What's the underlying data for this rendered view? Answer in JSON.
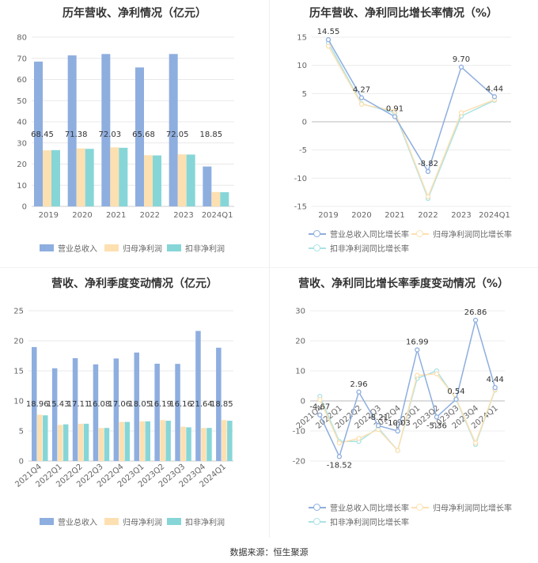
{
  "source": "数据来源：恒生聚源",
  "colors": {
    "revenue": "#8eaedf",
    "net_profit": "#fde0b1",
    "deducted": "#86d6d8"
  },
  "chart_data": [
    {
      "type": "bar",
      "title": "历年营收、净利情况（亿元）",
      "categories": [
        "2019",
        "2020",
        "2021",
        "2022",
        "2023",
        "2024Q1"
      ],
      "ylim": [
        0,
        80
      ],
      "yticks": [
        0,
        10,
        20,
        30,
        40,
        50,
        60,
        70,
        80
      ],
      "grid": true,
      "legend_position": "bottom",
      "series": [
        {
          "name": "营业总收入",
          "values": [
            68.45,
            71.38,
            72.03,
            65.68,
            72.05,
            18.85
          ],
          "labels": [
            "68.45",
            "71.38",
            "72.03",
            "65.68",
            "72.05",
            "18.85"
          ]
        },
        {
          "name": "归母净利润",
          "values": [
            26.5,
            27.4,
            27.9,
            24.2,
            24.6,
            6.8
          ]
        },
        {
          "name": "扣非净利润",
          "values": [
            26.6,
            27.2,
            27.7,
            24.1,
            24.5,
            6.7
          ]
        }
      ]
    },
    {
      "type": "line",
      "title": "历年营收、净利同比增长率情况（%）",
      "categories": [
        "2019",
        "2020",
        "2021",
        "2022",
        "2023",
        "2024Q1"
      ],
      "ylim": [
        -15,
        15
      ],
      "yticks": [
        -15,
        -10,
        -5,
        0,
        5,
        10,
        15
      ],
      "grid": true,
      "legend_position": "bottom",
      "series": [
        {
          "name": "营业总收入同比增长率",
          "values": [
            14.55,
            4.27,
            0.91,
            -8.82,
            9.7,
            4.44
          ],
          "labels": [
            "14.55",
            "4.27",
            "0.91",
            "-8.82",
            "9.70",
            "4.44"
          ]
        },
        {
          "name": "归母净利润同比增长率",
          "values": [
            13.4,
            3.1,
            1.9,
            -13.3,
            1.6,
            3.9
          ]
        },
        {
          "name": "扣非净利润同比增长率",
          "values": [
            14.0,
            3.2,
            1.6,
            -13.6,
            1.0,
            3.8
          ]
        }
      ]
    },
    {
      "type": "bar",
      "title": "营收、净利季度变动情况（亿元）",
      "categories": [
        "2021Q4",
        "2022Q1",
        "2022Q2",
        "2022Q3",
        "2022Q4",
        "2023Q1",
        "2023Q2",
        "2023Q3",
        "2023Q4",
        "2024Q1"
      ],
      "ylim": [
        0,
        25
      ],
      "yticks": [
        0,
        5,
        10,
        15,
        20,
        25
      ],
      "grid": true,
      "legend_position": "bottom",
      "series": [
        {
          "name": "营业总收入",
          "values": [
            18.96,
            15.43,
            17.11,
            16.08,
            17.06,
            18.05,
            16.19,
            16.16,
            21.64,
            18.85
          ],
          "labels": [
            "18.96",
            "15.43",
            "17.11",
            "16.08",
            "17.06",
            "18.05",
            "16.19",
            "16.16",
            "21.64",
            "18.85"
          ]
        },
        {
          "name": "归母净利润",
          "values": [
            7.7,
            6.0,
            6.2,
            5.5,
            6.5,
            6.6,
            6.8,
            5.7,
            5.5,
            6.8
          ]
        },
        {
          "name": "扣非净利润",
          "values": [
            7.6,
            6.1,
            6.2,
            5.5,
            6.5,
            6.6,
            6.7,
            5.6,
            5.5,
            6.7
          ]
        }
      ]
    },
    {
      "type": "line",
      "title": "营收、净利同比增长率季度变动情况（%）",
      "categories": [
        "2021Q4",
        "2022Q1",
        "2022Q2",
        "2022Q3",
        "2022Q4",
        "2023Q1",
        "2023Q2",
        "2023Q3",
        "2023Q4",
        "2024Q1"
      ],
      "ylim": [
        -20,
        30
      ],
      "yticks": [
        -20,
        -10,
        0,
        10,
        20,
        30
      ],
      "grid": true,
      "legend_position": "bottom",
      "series": [
        {
          "name": "营业总收入同比增长率",
          "values": [
            -4.67,
            -18.52,
            2.96,
            -8.21,
            -10.03,
            16.99,
            -5.36,
            0.54,
            26.86,
            4.44
          ],
          "labels": [
            "-4.67",
            "-18.52",
            "2.96",
            "-8.21",
            "-10.03",
            "16.99",
            "-5.36",
            "0.54",
            "26.86",
            "4.44"
          ]
        },
        {
          "name": "归母净利润同比增长率",
          "values": [
            0.5,
            -14.0,
            -12.5,
            -9.5,
            -16.5,
            8.5,
            9.0,
            0.8,
            -14.0,
            3.8
          ]
        },
        {
          "name": "扣非净利润同比增长率",
          "values": [
            1.5,
            -13.5,
            -13.5,
            -9.0,
            -16.5,
            7.5,
            10.0,
            0.5,
            -14.5,
            3.6
          ]
        }
      ]
    }
  ]
}
